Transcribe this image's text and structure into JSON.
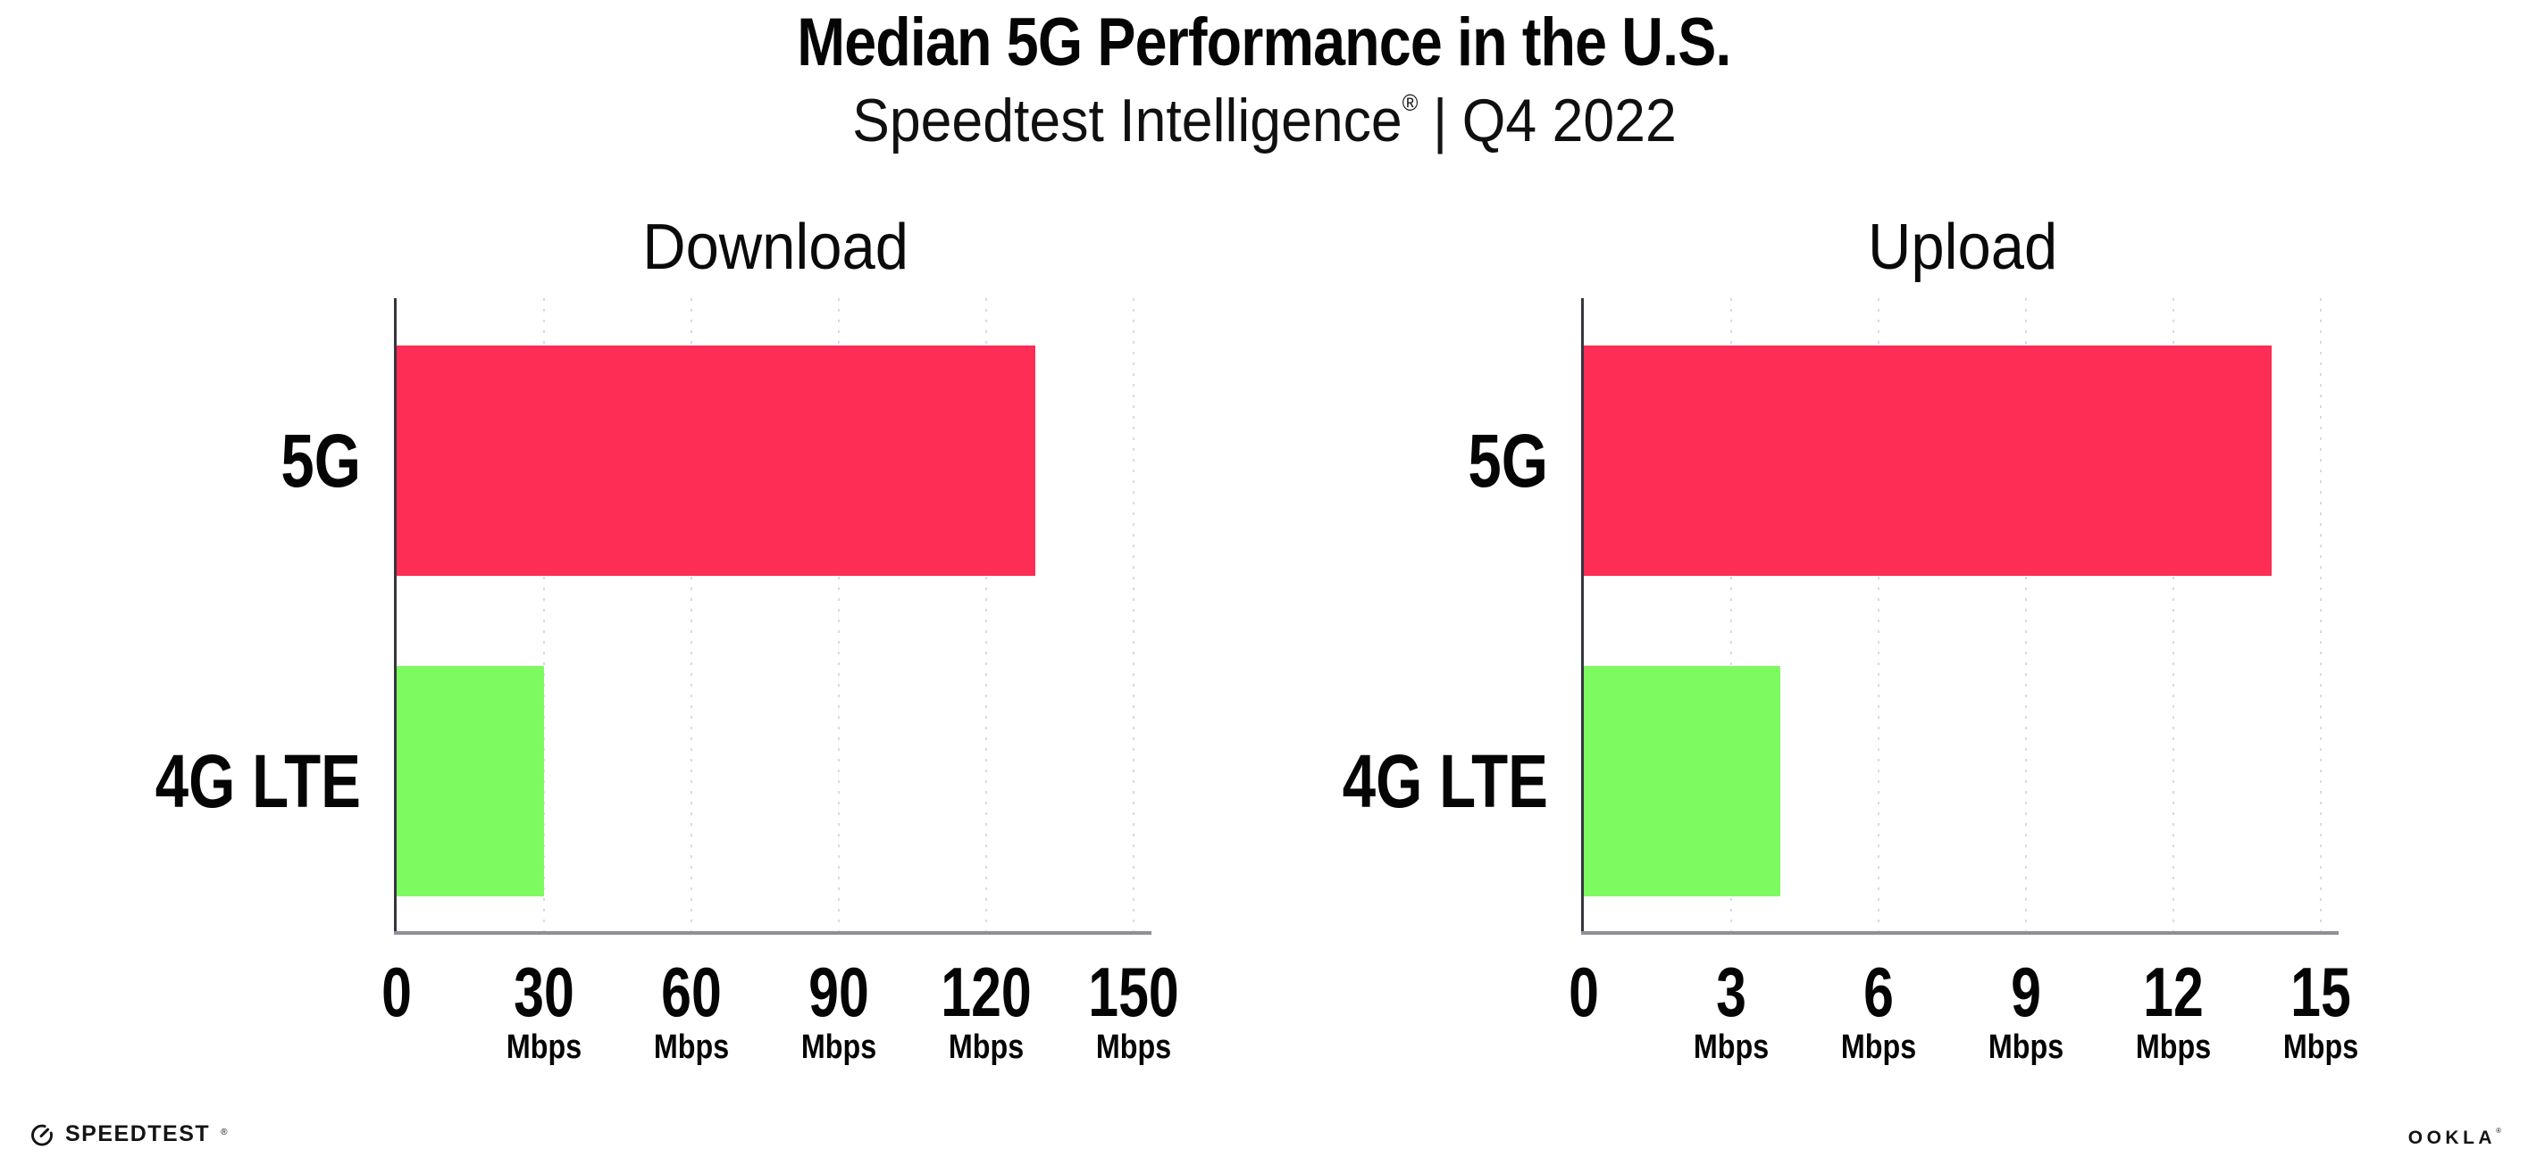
{
  "title": "Median 5G Performance in the U.S.",
  "subtitle": {
    "brand": "Speedtest Intelligence",
    "reg_mark": "®",
    "separator": "|",
    "period": "Q4 2022"
  },
  "footer": {
    "speedtest_label": "SPEEDTEST",
    "speedtest_mark": "®",
    "ookla_label": "OOKLA",
    "ookla_mark": "®"
  },
  "colors": {
    "bar_5g": "#fd2d55",
    "bar_4g_lte": "#7dfa60",
    "gridline": "#d9d9e6",
    "y_axis": "#35353f",
    "x_axis": "#8f8f98",
    "text": "#050505",
    "background": "#ffffff"
  },
  "chart_data": [
    {
      "type": "bar",
      "orientation": "horizontal",
      "title": "Download",
      "categories": [
        "5G",
        "4G LTE"
      ],
      "values": [
        130,
        30
      ],
      "unit": "Mbps",
      "xlim": [
        0,
        150
      ],
      "xticks": [
        0,
        30,
        60,
        90,
        120,
        150
      ],
      "xtick_suffix": "Mbps",
      "bar_colors": [
        "#fd2d55",
        "#7dfa60"
      ],
      "grid": "vertical-dotted",
      "legend": "none"
    },
    {
      "type": "bar",
      "orientation": "horizontal",
      "title": "Upload",
      "categories": [
        "5G",
        "4G LTE"
      ],
      "values": [
        14,
        4
      ],
      "unit": "Mbps",
      "xlim": [
        0,
        15
      ],
      "xticks": [
        0,
        3,
        6,
        9,
        12,
        15
      ],
      "xtick_suffix": "Mbps",
      "bar_colors": [
        "#fd2d55",
        "#7dfa60"
      ],
      "grid": "vertical-dotted",
      "legend": "none"
    }
  ]
}
